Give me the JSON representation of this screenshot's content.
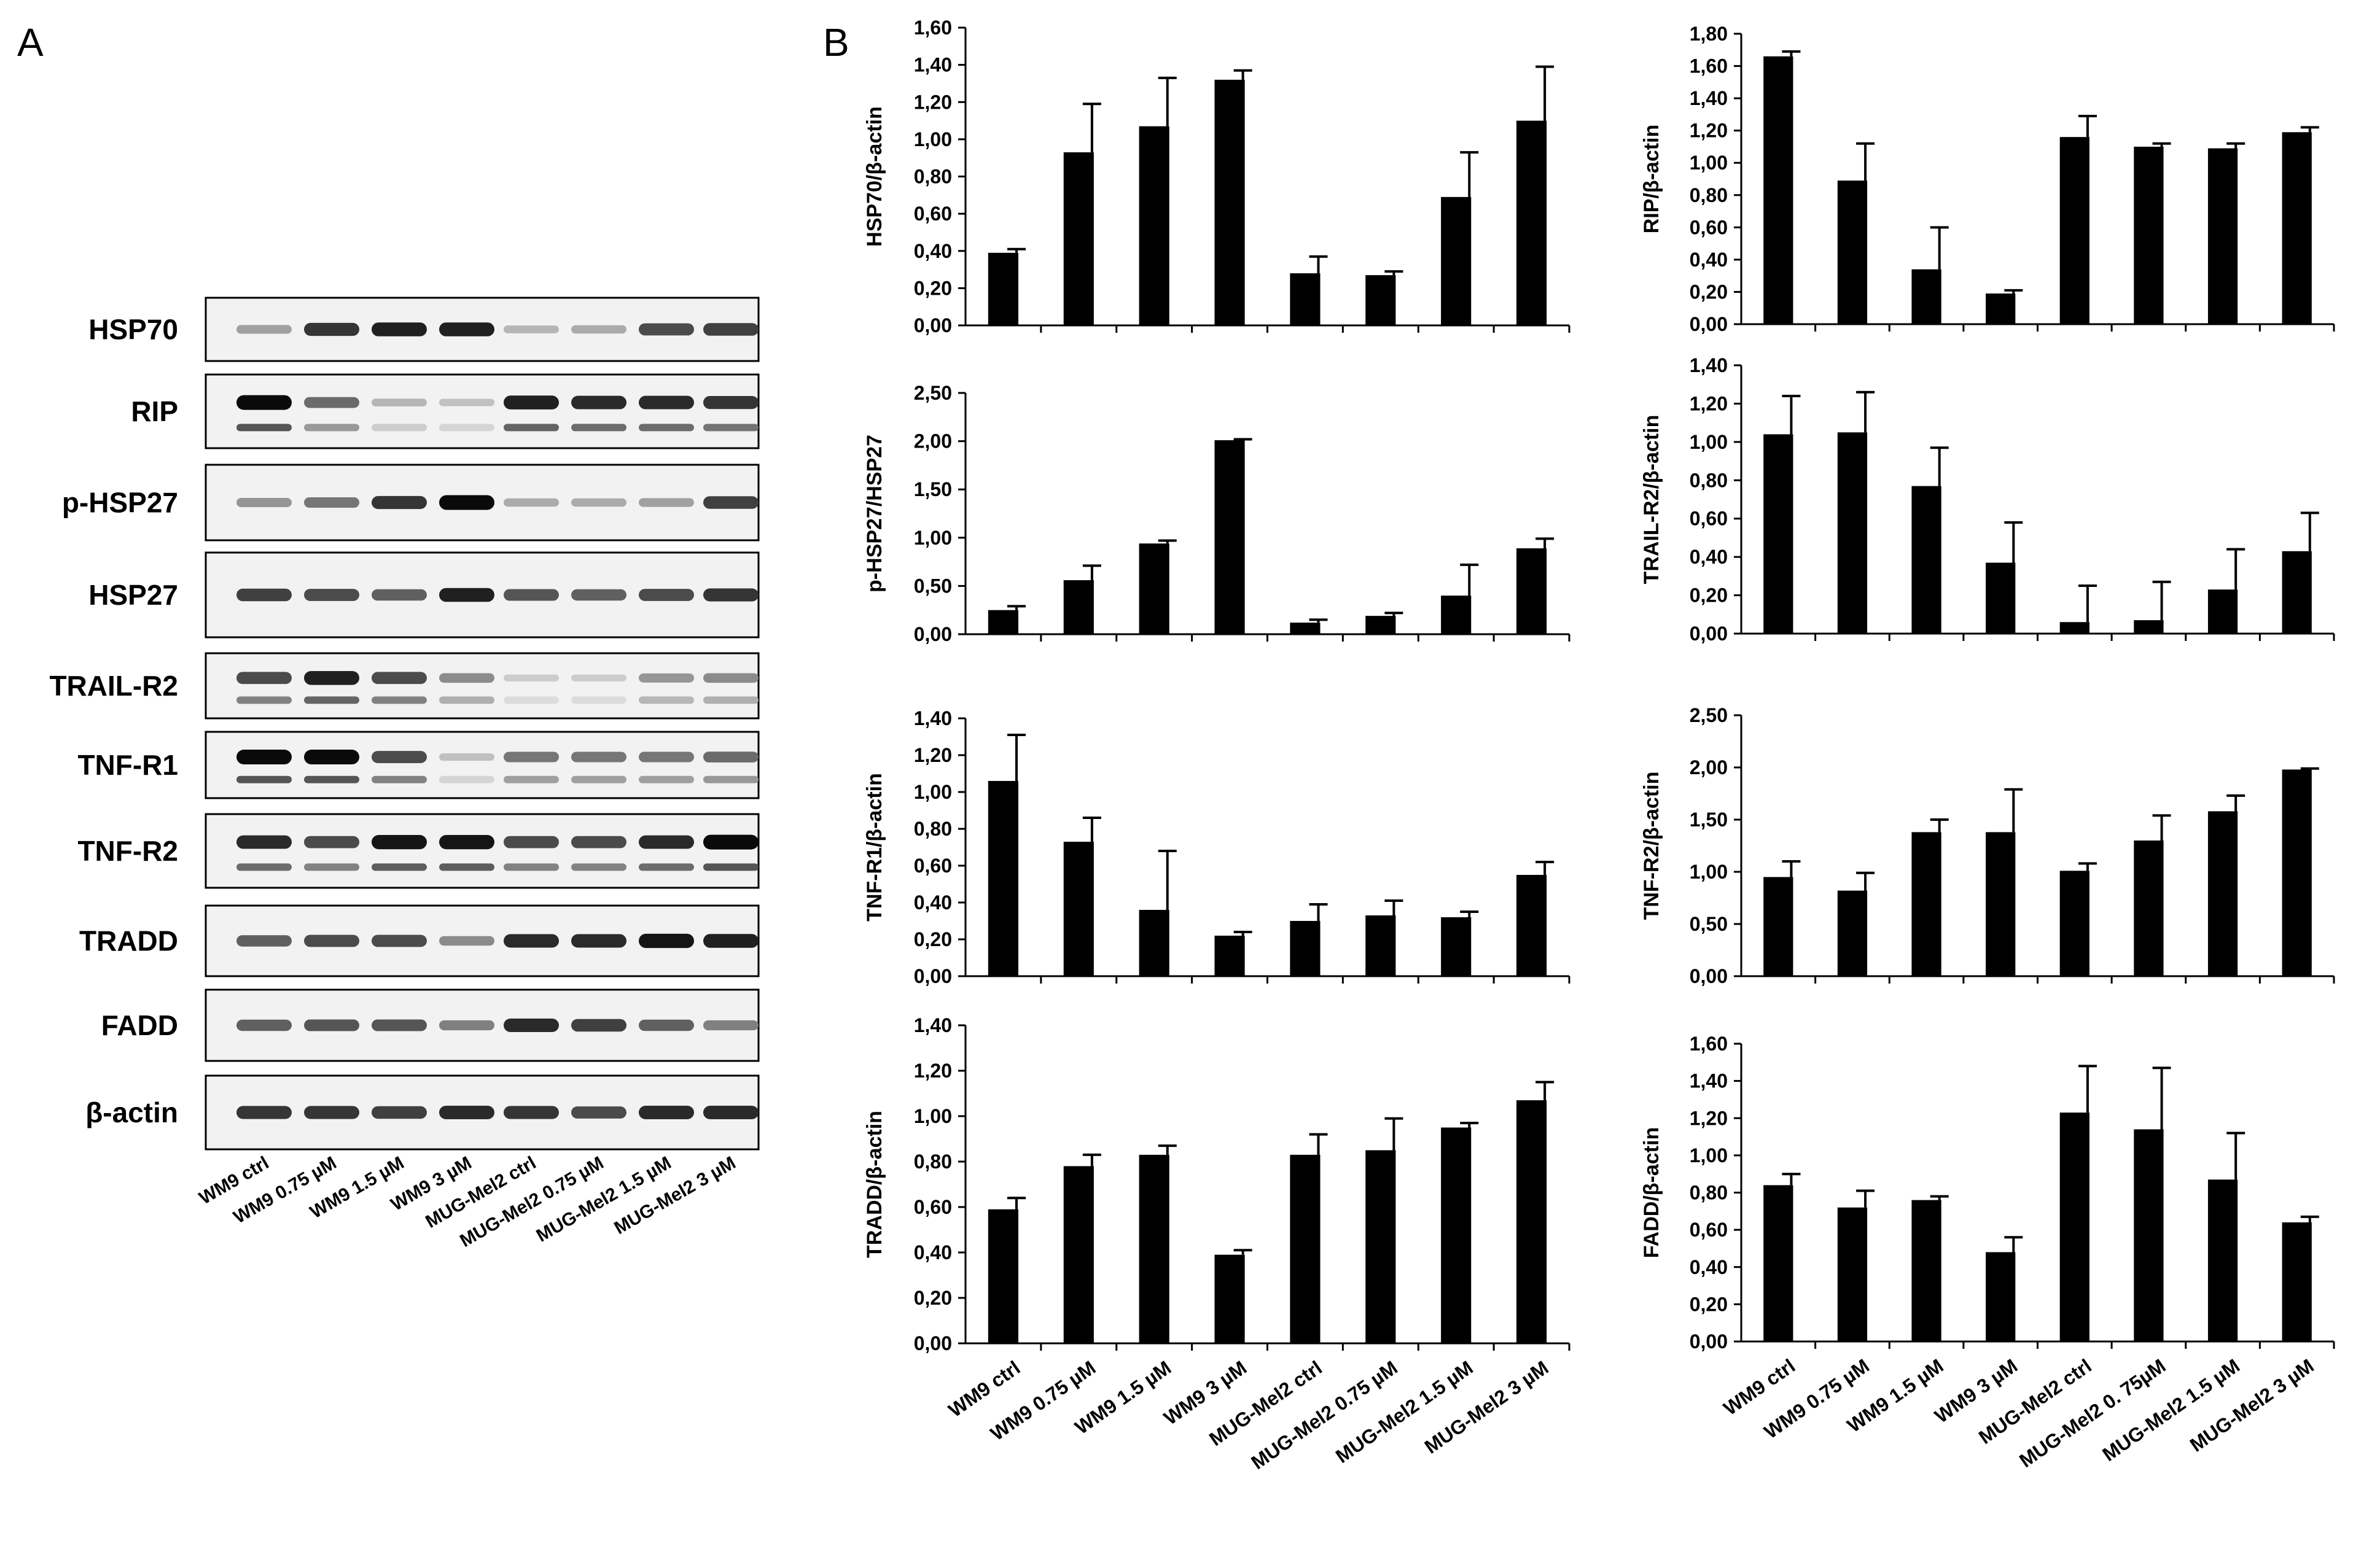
{
  "panel_a": {
    "letter": "A",
    "proteins": [
      "HSP70",
      "RIP",
      "p-HSP27",
      "HSP27",
      "TRAIL-R2",
      "TNF-R1",
      "TNF-R2",
      "TRADD",
      "FADD",
      "β-actin"
    ],
    "lanes": [
      "WM9 ctrl",
      "WM9 0.75 µM",
      "WM9 1.5 µM",
      "WM9 3 µM",
      "MUG-Mel2 ctrl",
      "MUG-Mel2 0.75 µM",
      "MUG-Mel2 1.5 µM",
      "MUG-Mel2 3 µM"
    ],
    "band_intensity": {
      "HSP70": [
        0.3,
        0.8,
        0.9,
        0.9,
        0.2,
        0.25,
        0.7,
        0.75
      ],
      "RIP": [
        1.0,
        0.55,
        0.2,
        0.15,
        0.9,
        0.85,
        0.85,
        0.8
      ],
      "p-HSP27": [
        0.35,
        0.5,
        0.8,
        1.0,
        0.25,
        0.25,
        0.3,
        0.75
      ],
      "HSP27": [
        0.75,
        0.7,
        0.6,
        0.9,
        0.65,
        0.6,
        0.7,
        0.8
      ],
      "TRAIL-R2": [
        0.7,
        0.9,
        0.7,
        0.4,
        0.1,
        0.1,
        0.35,
        0.4
      ],
      "TNF-R1": [
        1.0,
        1.0,
        0.7,
        0.15,
        0.5,
        0.5,
        0.5,
        0.55
      ],
      "TNF-R2": [
        0.85,
        0.7,
        0.95,
        0.95,
        0.7,
        0.7,
        0.85,
        1.0
      ],
      "TRADD": [
        0.6,
        0.7,
        0.7,
        0.4,
        0.85,
        0.85,
        0.95,
        0.9
      ],
      "FADD": [
        0.6,
        0.65,
        0.65,
        0.45,
        0.85,
        0.75,
        0.6,
        0.45
      ],
      "β-actin": [
        0.8,
        0.8,
        0.75,
        0.85,
        0.8,
        0.7,
        0.85,
        0.85
      ]
    }
  },
  "panel_b": {
    "letter": "B"
  },
  "chart_data": [
    {
      "type": "bar",
      "ylabel": "HSP70/β-actin",
      "categories": [
        "WM9 ctrl",
        "WM9 0.75 µM",
        "WM9 1.5 µM",
        "WM9 3 µM",
        "MUG-Mel2 ctrl",
        "MUG-Mel2 0.75 µM",
        "MUG-Mel2 1.5 µM",
        "MUG-Mel2 3 µM"
      ],
      "values": [
        0.39,
        0.93,
        1.07,
        1.32,
        0.28,
        0.27,
        0.69,
        1.1
      ],
      "errors": [
        0.02,
        0.26,
        0.26,
        0.05,
        0.09,
        0.02,
        0.24,
        0.29
      ],
      "ylim": [
        0,
        1.6
      ],
      "yticks": [
        "0,00",
        "0,20",
        "0,40",
        "0,60",
        "0,80",
        "1,00",
        "1,20",
        "1,40",
        "1,60"
      ],
      "show_xlabels": false
    },
    {
      "type": "bar",
      "ylabel": "RIP/β-actin",
      "categories": [
        "WM9 ctrl",
        "WM9 0.75 µM",
        "WM9 1.5 µM",
        "WM9 3 µM",
        "MUG-Mel2 ctrl",
        "MUG-Mel2 0.75 µM",
        "MUG-Mel2 1.5 µM",
        "MUG-Mel2 3 µM"
      ],
      "values": [
        1.66,
        0.89,
        0.34,
        0.19,
        1.16,
        1.1,
        1.09,
        1.19
      ],
      "errors": [
        0.03,
        0.23,
        0.26,
        0.02,
        0.13,
        0.02,
        0.03,
        0.03
      ],
      "ylim": [
        0,
        1.8
      ],
      "yticks": [
        "0,00",
        "0,20",
        "0,40",
        "0,60",
        "0,80",
        "1,00",
        "1,20",
        "1,40",
        "1,60",
        "1,80"
      ],
      "show_xlabels": false
    },
    {
      "type": "bar",
      "ylabel": "p-HSP27/HSP27",
      "categories": [
        "WM9 ctrl",
        "WM9 0.75 µM",
        "WM9 1.5 µM",
        "WM9 3 µM",
        "MUG-Mel2 ctrl",
        "MUG-Mel2 0.75 µM",
        "MUG-Mel2 1.5 µM",
        "MUG-Mel2 3 µM"
      ],
      "values": [
        0.25,
        0.56,
        0.94,
        2.01,
        0.12,
        0.19,
        0.4,
        0.89
      ],
      "errors": [
        0.04,
        0.15,
        0.03,
        0.01,
        0.03,
        0.03,
        0.32,
        0.1
      ],
      "ylim": [
        0,
        2.5
      ],
      "yticks": [
        "0,00",
        "0,50",
        "1,00",
        "1,50",
        "2,00",
        "2,50"
      ],
      "show_xlabels": false
    },
    {
      "type": "bar",
      "ylabel": "TRAIL-R2/β-actin",
      "categories": [
        "WM9 ctrl",
        "WM9 0.75 µM",
        "WM9 1.5 µM",
        "WM9 3 µM",
        "MUG-Mel2 ctrl",
        "MUG-Mel2 0.75 µM",
        "MUG-Mel2 1.5 µM",
        "MUG-Mel2 3 µM"
      ],
      "values": [
        1.04,
        1.05,
        0.77,
        0.37,
        0.06,
        0.07,
        0.23,
        0.43
      ],
      "errors": [
        0.2,
        0.21,
        0.2,
        0.21,
        0.19,
        0.2,
        0.21,
        0.2
      ],
      "ylim": [
        0,
        1.4
      ],
      "yticks": [
        "0,00",
        "0,20",
        "0,40",
        "0,60",
        "0,80",
        "1,00",
        "1,20",
        "1,40"
      ],
      "show_xlabels": false
    },
    {
      "type": "bar",
      "ylabel": "TNF-R1/β-actin",
      "categories": [
        "WM9 ctrl",
        "WM9 0.75 µM",
        "WM9 1.5 µM",
        "WM9 3 µM",
        "MUG-Mel2 ctrl",
        "MUG-Mel2 0.75 µM",
        "MUG-Mel2 1.5 µM",
        "MUG-Mel2 3 µM"
      ],
      "values": [
        1.06,
        0.73,
        0.36,
        0.22,
        0.3,
        0.33,
        0.32,
        0.55
      ],
      "errors": [
        0.25,
        0.13,
        0.32,
        0.02,
        0.09,
        0.08,
        0.03,
        0.07
      ],
      "ylim": [
        0,
        1.4
      ],
      "yticks": [
        "0,00",
        "0,20",
        "0,40",
        "0,60",
        "0,80",
        "1,00",
        "1,20",
        "1,40"
      ],
      "show_xlabels": false
    },
    {
      "type": "bar",
      "ylabel": "TNF-R2/β-actin",
      "categories": [
        "WM9 ctrl",
        "WM9 0.75 µM",
        "WM9 1.5 µM",
        "WM9 3 µM",
        "MUG-Mel2 ctrl",
        "MUG-Mel2 0.75 µM",
        "MUG-Mel2 1.5 µM",
        "MUG-Mel2 3 µM"
      ],
      "values": [
        0.95,
        0.82,
        1.38,
        1.38,
        1.01,
        1.3,
        1.58,
        1.98
      ],
      "errors": [
        0.15,
        0.17,
        0.12,
        0.41,
        0.07,
        0.24,
        0.15,
        0.01
      ],
      "ylim": [
        0,
        2.5
      ],
      "yticks": [
        "0,00",
        "0,50",
        "1,00",
        "1,50",
        "2,00",
        "2,50"
      ],
      "show_xlabels": false
    },
    {
      "type": "bar",
      "ylabel": "TRADD/β-actin",
      "categories": [
        "WM9 ctrl",
        "WM9 0.75 µM",
        "WM9 1.5 µM",
        "WM9 3 µM",
        "MUG-Mel2 ctrl",
        "MUG-Mel2 0.75 µM",
        "MUG-Mel2 1.5 µM",
        "MUG-Mel2 3 µM"
      ],
      "values": [
        0.59,
        0.78,
        0.83,
        0.39,
        0.83,
        0.85,
        0.95,
        1.07
      ],
      "errors": [
        0.05,
        0.05,
        0.04,
        0.02,
        0.09,
        0.14,
        0.02,
        0.08
      ],
      "ylim": [
        0,
        1.4
      ],
      "yticks": [
        "0,00",
        "0,20",
        "0,40",
        "0,60",
        "0,80",
        "1,00",
        "1,20",
        "1,40"
      ],
      "show_xlabels": true
    },
    {
      "type": "bar",
      "ylabel": "FADD/β-actin",
      "categories": [
        "WM9 ctrl",
        "WM9 0.75 µM",
        "WM9 1.5 µM",
        "WM9 3 µM",
        "MUG-Mel2 ctrl",
        "MUG-Mel2 0. 75µM",
        "MUG-Mel2 1.5 µM",
        "MUG-Mel2 3 µM"
      ],
      "values": [
        0.84,
        0.72,
        0.76,
        0.48,
        1.23,
        1.14,
        0.87,
        0.64
      ],
      "errors": [
        0.06,
        0.09,
        0.02,
        0.08,
        0.25,
        0.33,
        0.25,
        0.03
      ],
      "ylim": [
        0,
        1.6
      ],
      "yticks": [
        "0,00",
        "0,20",
        "0,40",
        "0,60",
        "0,80",
        "1,00",
        "1,20",
        "1,40",
        "1,60"
      ],
      "show_xlabels": true
    }
  ]
}
